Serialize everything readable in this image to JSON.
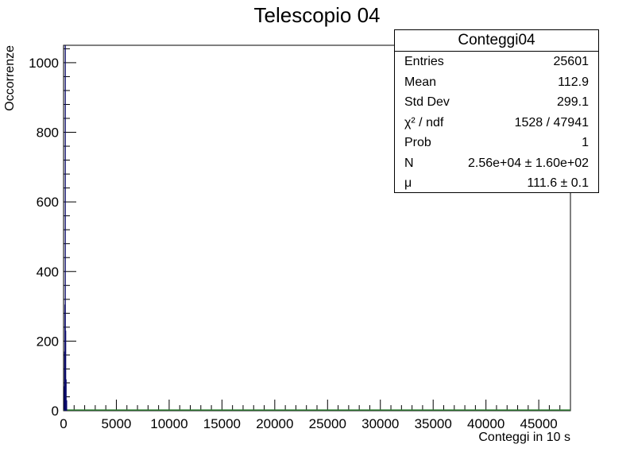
{
  "chart_data": {
    "type": "histogram",
    "title": "Telescopio 04",
    "xlabel": "Conteggi in 10 s",
    "ylabel": "Occorrenze",
    "xlim": [
      0,
      48000
    ],
    "ylim": [
      0,
      1050
    ],
    "x_ticks": [
      0,
      5000,
      10000,
      15000,
      20000,
      25000,
      30000,
      35000,
      40000,
      45000
    ],
    "y_ticks": [
      0,
      200,
      400,
      600,
      800,
      1000
    ],
    "series": [
      {
        "color": "#0b0b6b",
        "bins": [
          {
            "x": 80,
            "y": 70
          },
          {
            "x": 105,
            "y": 170
          },
          {
            "x": 135,
            "y": 305
          },
          {
            "x": 165,
            "y": 1050
          },
          {
            "x": 200,
            "y": 230
          },
          {
            "x": 240,
            "y": 90
          },
          {
            "x": 290,
            "y": 30
          }
        ]
      },
      {
        "color": "#2e7d32",
        "style": "fit-line",
        "points": [
          [
            0,
            2
          ],
          [
            48000,
            2
          ]
        ]
      }
    ],
    "stats_box": {
      "title": "Conteggi04",
      "rows": [
        {
          "key": "Entries",
          "value": "25601"
        },
        {
          "key": "Mean",
          "value": "112.9"
        },
        {
          "key": "Std Dev",
          "value": "299.1"
        },
        {
          "key": "χ² / ndf",
          "value": "1528 / 47941"
        },
        {
          "key": "Prob",
          "value": "1"
        },
        {
          "key": "N",
          "value": "2.56e+04 ± 1.60e+02"
        },
        {
          "key": "μ",
          "value": "111.6 ± 0.1"
        }
      ]
    }
  }
}
